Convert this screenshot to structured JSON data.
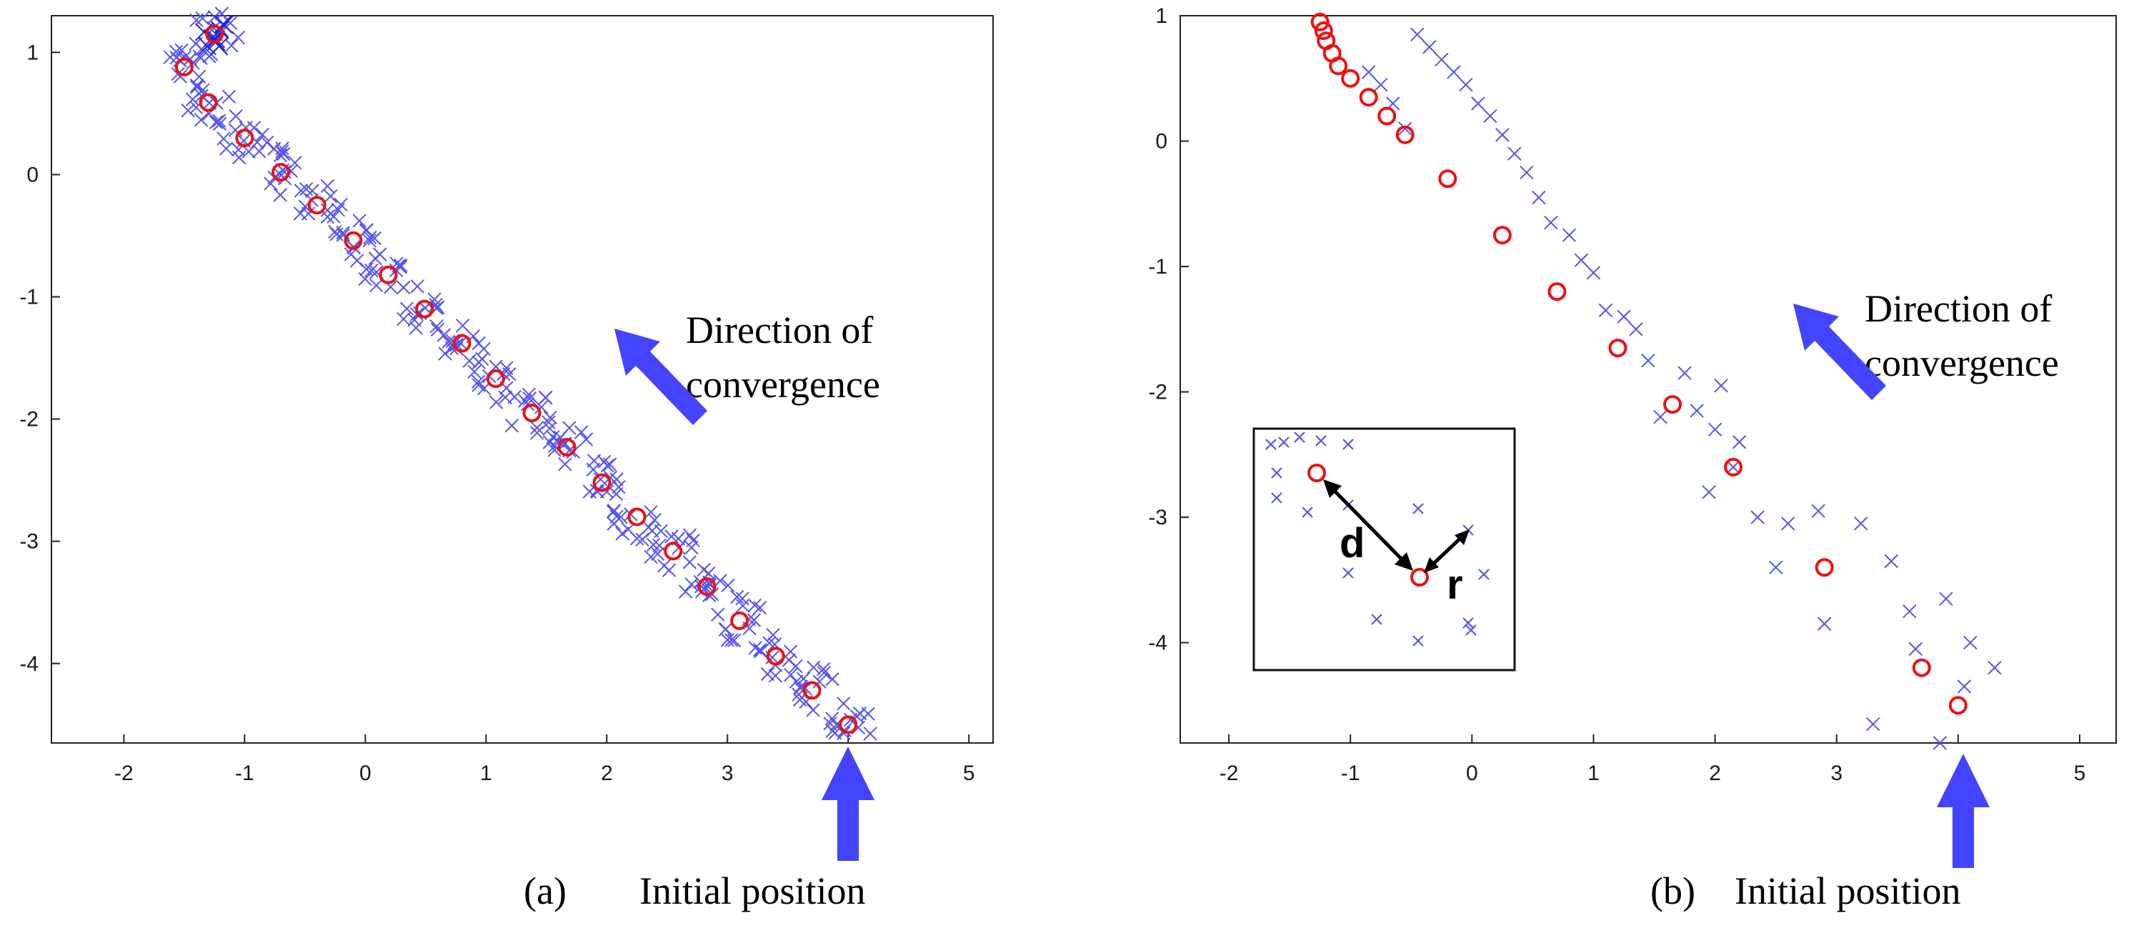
{
  "colors": {
    "particles": "#5555ee",
    "particles_dense": "#2222cc",
    "centers": "#ee1111",
    "arrow": "#4444ff",
    "axis": "#222222",
    "inset_arrow": "#000000"
  },
  "chart_data": [
    {
      "type": "scatter",
      "panel_label": "(a)",
      "xlim": [
        -2.6,
        5.2
      ],
      "ylim": [
        -4.65,
        1.3
      ],
      "xticks": [
        -2,
        -1,
        0,
        1,
        2,
        3,
        4,
        5
      ],
      "yticks": [
        1,
        0,
        -1,
        -2,
        -3,
        -4
      ],
      "series": [
        {
          "name": "centers",
          "marker": "circle",
          "x": [
            4.0,
            3.7,
            3.4,
            3.1,
            2.83,
            2.55,
            2.25,
            1.96,
            1.67,
            1.38,
            1.08,
            0.8,
            0.49,
            0.19,
            -0.1,
            -0.4,
            -0.7,
            -1.0,
            -1.3,
            -1.5,
            -1.25
          ],
          "y": [
            -4.5,
            -4.22,
            -3.94,
            -3.65,
            -3.37,
            -3.08,
            -2.8,
            -2.52,
            -2.23,
            -1.95,
            -1.67,
            -1.38,
            -1.1,
            -0.82,
            -0.54,
            -0.25,
            0.02,
            0.3,
            0.59,
            0.88,
            1.15
          ]
        }
      ],
      "particle_spread": 0.2,
      "annotations": [
        {
          "text_lines": [
            "Direction of",
            "convergence"
          ],
          "arrow": "up-left"
        },
        {
          "text": "Initial position",
          "arrow": "up"
        }
      ]
    },
    {
      "type": "scatter",
      "panel_label": "(b)",
      "xlim": [
        -2.4,
        5.3
      ],
      "ylim": [
        -4.8,
        1.0
      ],
      "xticks": [
        -2,
        -1,
        0,
        1,
        2,
        3,
        4,
        5
      ],
      "yticks": [
        1,
        0,
        -1,
        -2,
        -3,
        -4
      ],
      "series": [
        {
          "name": "centers",
          "marker": "circle",
          "x": [
            4.0,
            3.7,
            2.9,
            2.15,
            1.65,
            1.2,
            0.7,
            0.25,
            -0.2,
            -0.55,
            -0.7,
            -0.85,
            -1.0,
            -1.1,
            -1.15,
            -1.2,
            -1.22,
            -1.25
          ],
          "y": [
            -4.5,
            -4.2,
            -3.4,
            -2.6,
            -2.1,
            -1.65,
            -1.2,
            -0.75,
            -0.3,
            0.05,
            0.2,
            0.35,
            0.5,
            0.6,
            0.7,
            0.8,
            0.88,
            0.95
          ]
        },
        {
          "name": "particles",
          "marker": "x",
          "x": [
            3.6,
            3.9,
            4.1,
            4.3,
            4.05,
            3.85,
            3.65,
            3.3,
            3.2,
            3.45,
            2.85,
            2.6,
            2.9,
            2.5,
            2.35,
            2.2,
            2.0,
            1.95,
            1.85,
            2.15,
            2.05,
            1.75,
            1.55,
            1.45,
            1.35,
            1.25,
            1.1,
            1.0,
            0.9,
            0.8,
            0.65,
            0.55,
            0.45,
            0.35,
            0.25,
            0.15,
            0.05,
            -0.05,
            -0.15,
            -0.25,
            -0.35,
            -0.45,
            -0.55,
            -0.65,
            -0.75,
            -0.85
          ],
          "y": [
            -3.75,
            -3.65,
            -4.0,
            -4.2,
            -4.35,
            -4.8,
            -4.05,
            -4.65,
            -3.05,
            -3.35,
            -2.95,
            -3.05,
            -3.85,
            -3.4,
            -3.0,
            -2.4,
            -2.3,
            -2.8,
            -2.15,
            -2.6,
            -1.95,
            -1.85,
            -2.2,
            -1.75,
            -1.5,
            -1.4,
            -1.35,
            -1.05,
            -0.95,
            -0.75,
            -0.65,
            -0.45,
            -0.25,
            -0.1,
            0.05,
            0.2,
            0.3,
            0.45,
            0.55,
            0.65,
            0.75,
            0.85,
            0.1,
            0.3,
            0.45,
            0.55
          ]
        }
      ],
      "annotations": [
        {
          "text_lines": [
            "Direction of",
            "convergence"
          ],
          "arrow": "up-left"
        },
        {
          "text": "Initial position",
          "arrow": "up"
        }
      ],
      "inset": {
        "labels": {
          "distance": "d",
          "radius": "r"
        }
      }
    }
  ]
}
